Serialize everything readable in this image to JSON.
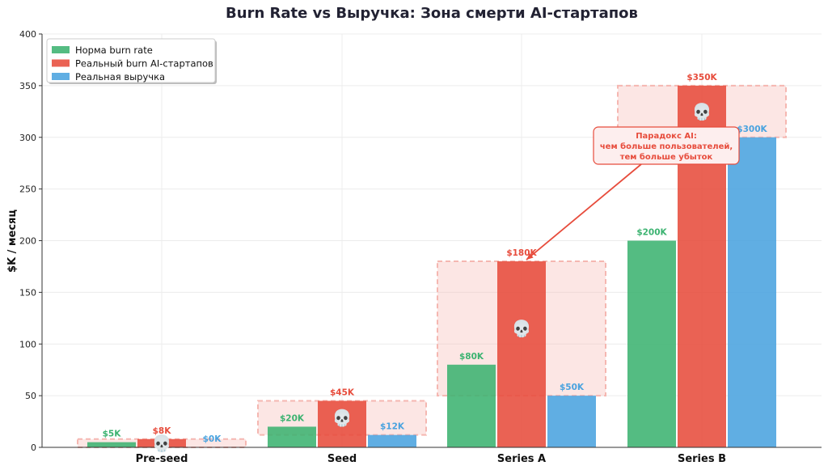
{
  "chart_data": {
    "type": "bar",
    "title": "Burn Rate vs Выручка: Зона смерти AI-стартапов",
    "xlabel": "",
    "ylabel": "$K / месяц",
    "ylim": [
      0,
      400
    ],
    "yticks": [
      0,
      50,
      100,
      150,
      200,
      250,
      300,
      350,
      400
    ],
    "categories": [
      "Pre-seed",
      "Seed",
      "Series A",
      "Series B"
    ],
    "series": [
      {
        "name": "Норма burn rate",
        "color": "#3cb371",
        "values": [
          5,
          20,
          80,
          200
        ],
        "labels": [
          "$5K",
          "$20K",
          "$80K",
          "$200K"
        ]
      },
      {
        "name": "Реальный burn AI-стартапов",
        "color": "#e74c3c",
        "values": [
          8,
          45,
          180,
          350
        ],
        "labels": [
          "$8K",
          "$45K",
          "$180K",
          "$350K"
        ]
      },
      {
        "name": "Реальная выручка",
        "color": "#4aa3df",
        "values": [
          0,
          12,
          50,
          300
        ],
        "labels": [
          "$0K",
          "$12K",
          "$50K",
          "$300K"
        ]
      }
    ],
    "death_zone_icon": "skull-icon",
    "death_zone_icon_glyph": "💀",
    "death_zone_color": "#f5b7b1",
    "annotation": {
      "lines": [
        "Парадокс AI:",
        "чем больше пользователей,",
        "тем больше убыток"
      ],
      "category": "Series A",
      "value": 180,
      "color": "#e74c3c"
    },
    "legend_position": "top-left",
    "grid": true
  }
}
